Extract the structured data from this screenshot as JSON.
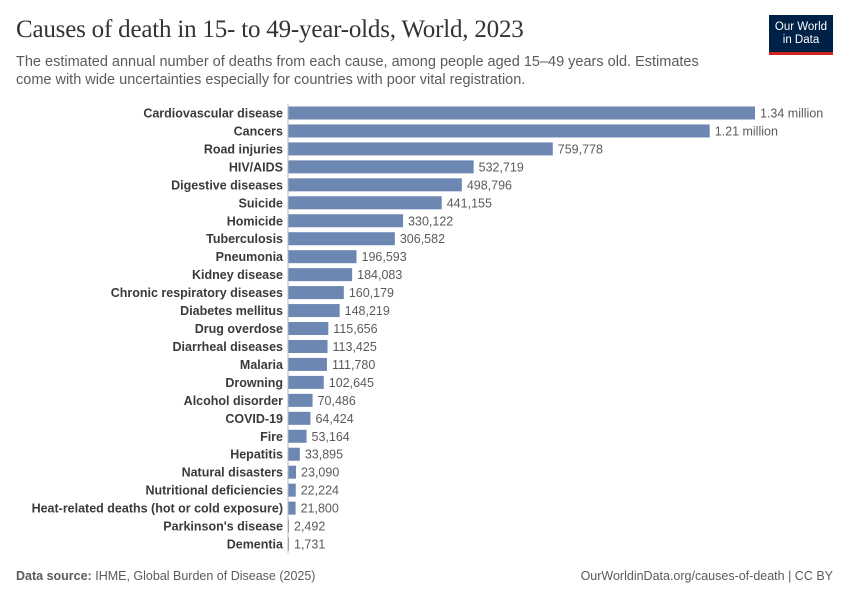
{
  "title": "Causes of death in 15- to 49-year-olds, World, 2023",
  "subtitle": "The estimated annual number of deaths from each cause, among people aged 15–49 years old. Estimates come with wide uncertainties especially for countries with poor vital registration.",
  "logo": {
    "line1": "Our World",
    "line2": "in Data"
  },
  "footer": {
    "source_label": "Data source:",
    "source": "IHME, Global Burden of Disease (2025)",
    "url": "OurWorldinData.org/causes-of-death | CC BY"
  },
  "colors": {
    "bar": "#6d87b3",
    "logo_bg": "#002147",
    "logo_accent": "#ce261e"
  },
  "chart_data": {
    "type": "bar",
    "orientation": "horizontal",
    "title": "Causes of death in 15- to 49-year-olds, World, 2023",
    "categories": [
      "Cardiovascular disease",
      "Cancers",
      "Road injuries",
      "HIV/AIDS",
      "Digestive diseases",
      "Suicide",
      "Homicide",
      "Tuberculosis",
      "Pneumonia",
      "Kidney disease",
      "Chronic respiratory diseases",
      "Diabetes mellitus",
      "Drug overdose",
      "Diarrheal diseases",
      "Malaria",
      "Drowning",
      "Alcohol disorder",
      "COVID-19",
      "Fire",
      "Hepatitis",
      "Natural disasters",
      "Nutritional deficiencies",
      "Heat-related deaths (hot or cold exposure)",
      "Parkinson's disease",
      "Dementia"
    ],
    "values": [
      1340000,
      1210000,
      759778,
      532719,
      498796,
      441155,
      330122,
      306582,
      196593,
      184083,
      160179,
      148219,
      115656,
      113425,
      111780,
      102645,
      70486,
      64424,
      53164,
      33895,
      23090,
      22224,
      21800,
      2492,
      1731
    ],
    "labels": [
      "1.34 million",
      "1.21 million",
      "759,778",
      "532,719",
      "498,796",
      "441,155",
      "330,122",
      "306,582",
      "196,593",
      "184,083",
      "160,179",
      "148,219",
      "115,656",
      "113,425",
      "111,780",
      "102,645",
      "70,486",
      "64,424",
      "53,164",
      "33,895",
      "23,090",
      "22,224",
      "21,800",
      "2,492",
      "1,731"
    ],
    "xlim": [
      0,
      1340000
    ],
    "grid": false
  }
}
